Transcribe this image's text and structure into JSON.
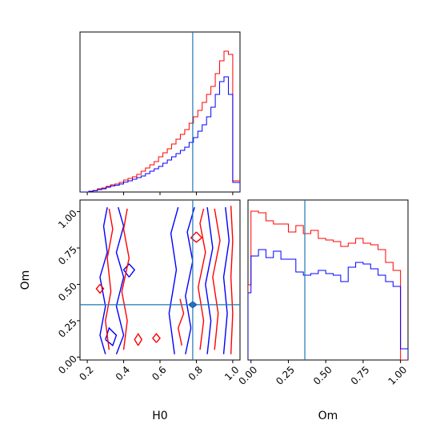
{
  "colors": {
    "series_a": "#ff0000",
    "series_b": "#0000ff",
    "truth": "#1f77b4",
    "frame": "#000000",
    "background": "#ffffff"
  },
  "chart_data": [
    {
      "type": "histogram",
      "panel": "H0 marginal",
      "xlabel": "",
      "ylabel": "",
      "xlim": [
        0.16,
        1.04
      ],
      "ylim": [
        0,
        1.0
      ],
      "x_ticks": [
        0.2,
        0.4,
        0.6,
        0.8,
        1.0
      ],
      "x_tick_labels_shown": false,
      "y_ticks": [],
      "truth_x": 0.78,
      "bin_edges": [
        0.16,
        0.184,
        0.208,
        0.232,
        0.256,
        0.28,
        0.304,
        0.328,
        0.352,
        0.376,
        0.4,
        0.424,
        0.448,
        0.472,
        0.496,
        0.52,
        0.544,
        0.568,
        0.592,
        0.616,
        0.64,
        0.664,
        0.688,
        0.712,
        0.736,
        0.76,
        0.784,
        0.808,
        0.832,
        0.856,
        0.88,
        0.904,
        0.928,
        0.952,
        0.976,
        1.0,
        1.04
      ],
      "series": [
        {
          "color": "red",
          "values": [
            0.0,
            0.0,
            0.005,
            0.01,
            0.02,
            0.025,
            0.035,
            0.045,
            0.05,
            0.06,
            0.075,
            0.085,
            0.095,
            0.11,
            0.13,
            0.15,
            0.17,
            0.19,
            0.22,
            0.245,
            0.27,
            0.3,
            0.33,
            0.36,
            0.39,
            0.43,
            0.47,
            0.51,
            0.56,
            0.61,
            0.66,
            0.74,
            0.82,
            0.88,
            0.86,
            0.07
          ]
        },
        {
          "color": "blue",
          "values": [
            0.0,
            0.0,
            0.004,
            0.008,
            0.015,
            0.02,
            0.03,
            0.038,
            0.042,
            0.05,
            0.062,
            0.07,
            0.08,
            0.09,
            0.1,
            0.115,
            0.13,
            0.145,
            0.16,
            0.18,
            0.2,
            0.22,
            0.24,
            0.26,
            0.28,
            0.31,
            0.34,
            0.38,
            0.42,
            0.47,
            0.53,
            0.61,
            0.69,
            0.72,
            0.61,
            0.06
          ]
        }
      ]
    },
    {
      "type": "contour",
      "panel": "H0 vs Om",
      "xlabel": "H0",
      "ylabel": "Om",
      "xlim": [
        0.16,
        1.04
      ],
      "ylim": [
        -0.02,
        1.08
      ],
      "x_ticks": [
        0.2,
        0.4,
        0.6,
        0.8,
        1.0
      ],
      "x_tick_labels": [
        "0.2",
        "0.4",
        "0.6",
        "0.8",
        "1.0"
      ],
      "y_ticks": [
        0.0,
        0.25,
        0.5,
        0.75,
        1.0
      ],
      "y_tick_labels": [
        "0.00",
        "0.25",
        "0.50",
        "0.75",
        "1.00"
      ],
      "truth": [
        0.78,
        0.36
      ],
      "series": [
        {
          "color": "blue",
          "contours": [
            [
              [
                0.3,
                0.02
              ],
              [
                0.27,
                0.15
              ],
              [
                0.3,
                0.35
              ],
              [
                0.27,
                0.55
              ],
              [
                0.31,
                0.72
              ],
              [
                0.29,
                0.9
              ],
              [
                0.31,
                1.03
              ]
            ],
            [
              [
                0.36,
                0.02
              ],
              [
                0.4,
                0.15
              ],
              [
                0.36,
                0.35
              ],
              [
                0.4,
                0.55
              ],
              [
                0.36,
                0.72
              ],
              [
                0.4,
                0.9
              ],
              [
                0.37,
                1.03
              ]
            ],
            [
              [
                0.43,
                0.55
              ],
              [
                0.46,
                0.6
              ],
              [
                0.43,
                0.64
              ],
              [
                0.4,
                0.6
              ],
              [
                0.43,
                0.55
              ]
            ],
            [
              [
                0.3,
                0.12
              ],
              [
                0.34,
                0.08
              ],
              [
                0.36,
                0.15
              ],
              [
                0.32,
                0.2
              ],
              [
                0.3,
                0.12
              ]
            ],
            [
              [
                0.68,
                0.02
              ],
              [
                0.65,
                0.3
              ],
              [
                0.69,
                0.6
              ],
              [
                0.66,
                0.85
              ],
              [
                0.7,
                1.03
              ]
            ],
            [
              [
                0.74,
                0.02
              ],
              [
                0.77,
                0.2
              ],
              [
                0.74,
                0.42
              ],
              [
                0.78,
                0.66
              ],
              [
                0.75,
                0.86
              ],
              [
                0.79,
                1.03
              ]
            ],
            [
              [
                0.86,
                0.02
              ],
              [
                0.88,
                0.25
              ],
              [
                0.85,
                0.5
              ],
              [
                0.89,
                0.75
              ],
              [
                0.86,
                1.03
              ]
            ],
            [
              [
                0.95,
                0.02
              ],
              [
                0.97,
                0.3
              ],
              [
                0.95,
                0.55
              ],
              [
                0.98,
                0.8
              ],
              [
                0.96,
                1.03
              ]
            ],
            [
              [
                0.78,
                0.34
              ],
              [
                0.8,
                0.36
              ],
              [
                0.78,
                0.38
              ],
              [
                0.76,
                0.36
              ],
              [
                0.78,
                0.34
              ]
            ]
          ]
        },
        {
          "color": "red",
          "contours": [
            [
              [
                0.32,
                0.05
              ],
              [
                0.3,
                0.25
              ],
              [
                0.33,
                0.45
              ],
              [
                0.31,
                0.68
              ],
              [
                0.34,
                0.88
              ],
              [
                0.32,
                1.02
              ]
            ],
            [
              [
                0.4,
                0.05
              ],
              [
                0.42,
                0.25
              ],
              [
                0.39,
                0.45
              ],
              [
                0.43,
                0.68
              ],
              [
                0.4,
                0.88
              ],
              [
                0.42,
                1.02
              ]
            ],
            [
              [
                0.27,
                0.5
              ],
              [
                0.25,
                0.47
              ],
              [
                0.27,
                0.44
              ],
              [
                0.29,
                0.47
              ],
              [
                0.27,
                0.5
              ]
            ],
            [
              [
                0.48,
                0.08
              ],
              [
                0.5,
                0.12
              ],
              [
                0.48,
                0.16
              ],
              [
                0.46,
                0.12
              ],
              [
                0.48,
                0.08
              ]
            ],
            [
              [
                0.72,
                0.08
              ],
              [
                0.7,
                0.2
              ],
              [
                0.73,
                0.3
              ],
              [
                0.71,
                0.4
              ]
            ],
            [
              [
                0.82,
                0.05
              ],
              [
                0.84,
                0.25
              ],
              [
                0.81,
                0.48
              ],
              [
                0.85,
                0.72
              ],
              [
                0.82,
                0.92
              ],
              [
                0.84,
                1.02
              ]
            ],
            [
              [
                0.9,
                0.05
              ],
              [
                0.92,
                0.3
              ],
              [
                0.89,
                0.55
              ],
              [
                0.93,
                0.8
              ],
              [
                0.9,
                1.02
              ]
            ],
            [
              [
                0.99,
                0.02
              ],
              [
                1.0,
                0.3
              ],
              [
                0.99,
                0.55
              ],
              [
                1.0,
                0.8
              ],
              [
                0.99,
                1.04
              ]
            ],
            [
              [
                0.8,
                0.86
              ],
              [
                0.77,
                0.82
              ],
              [
                0.8,
                0.79
              ],
              [
                0.83,
                0.82
              ],
              [
                0.8,
                0.86
              ]
            ],
            [
              [
                0.58,
                0.1
              ],
              [
                0.6,
                0.13
              ],
              [
                0.58,
                0.16
              ],
              [
                0.56,
                0.13
              ],
              [
                0.58,
                0.1
              ]
            ]
          ]
        }
      ]
    },
    {
      "type": "histogram",
      "panel": "Om marginal",
      "xlabel": "Om",
      "ylabel": "",
      "xlim": [
        -0.02,
        1.05
      ],
      "ylim": [
        0,
        1.0
      ],
      "x_ticks": [
        0.0,
        0.25,
        0.5,
        0.75,
        1.0
      ],
      "x_tick_labels": [
        "0.00",
        "0.25",
        "0.50",
        "0.75",
        "1.00"
      ],
      "y_ticks": [],
      "truth_x": 0.36,
      "bin_edges": [
        -0.02,
        0.0,
        0.05,
        0.1,
        0.15,
        0.2,
        0.25,
        0.3,
        0.35,
        0.4,
        0.45,
        0.5,
        0.55,
        0.6,
        0.65,
        0.7,
        0.75,
        0.8,
        0.85,
        0.9,
        0.95,
        1.0,
        1.05
      ],
      "series": [
        {
          "color": "red",
          "values": [
            0.47,
            0.93,
            0.92,
            0.87,
            0.85,
            0.85,
            0.8,
            0.84,
            0.79,
            0.81,
            0.76,
            0.75,
            0.74,
            0.71,
            0.73,
            0.76,
            0.73,
            0.72,
            0.69,
            0.61,
            0.56,
            0.0
          ]
        },
        {
          "color": "blue",
          "values": [
            0.42,
            0.65,
            0.69,
            0.64,
            0.68,
            0.63,
            0.63,
            0.55,
            0.53,
            0.54,
            0.56,
            0.54,
            0.53,
            0.49,
            0.58,
            0.61,
            0.6,
            0.57,
            0.53,
            0.49,
            0.46,
            0.07
          ]
        }
      ]
    }
  ]
}
